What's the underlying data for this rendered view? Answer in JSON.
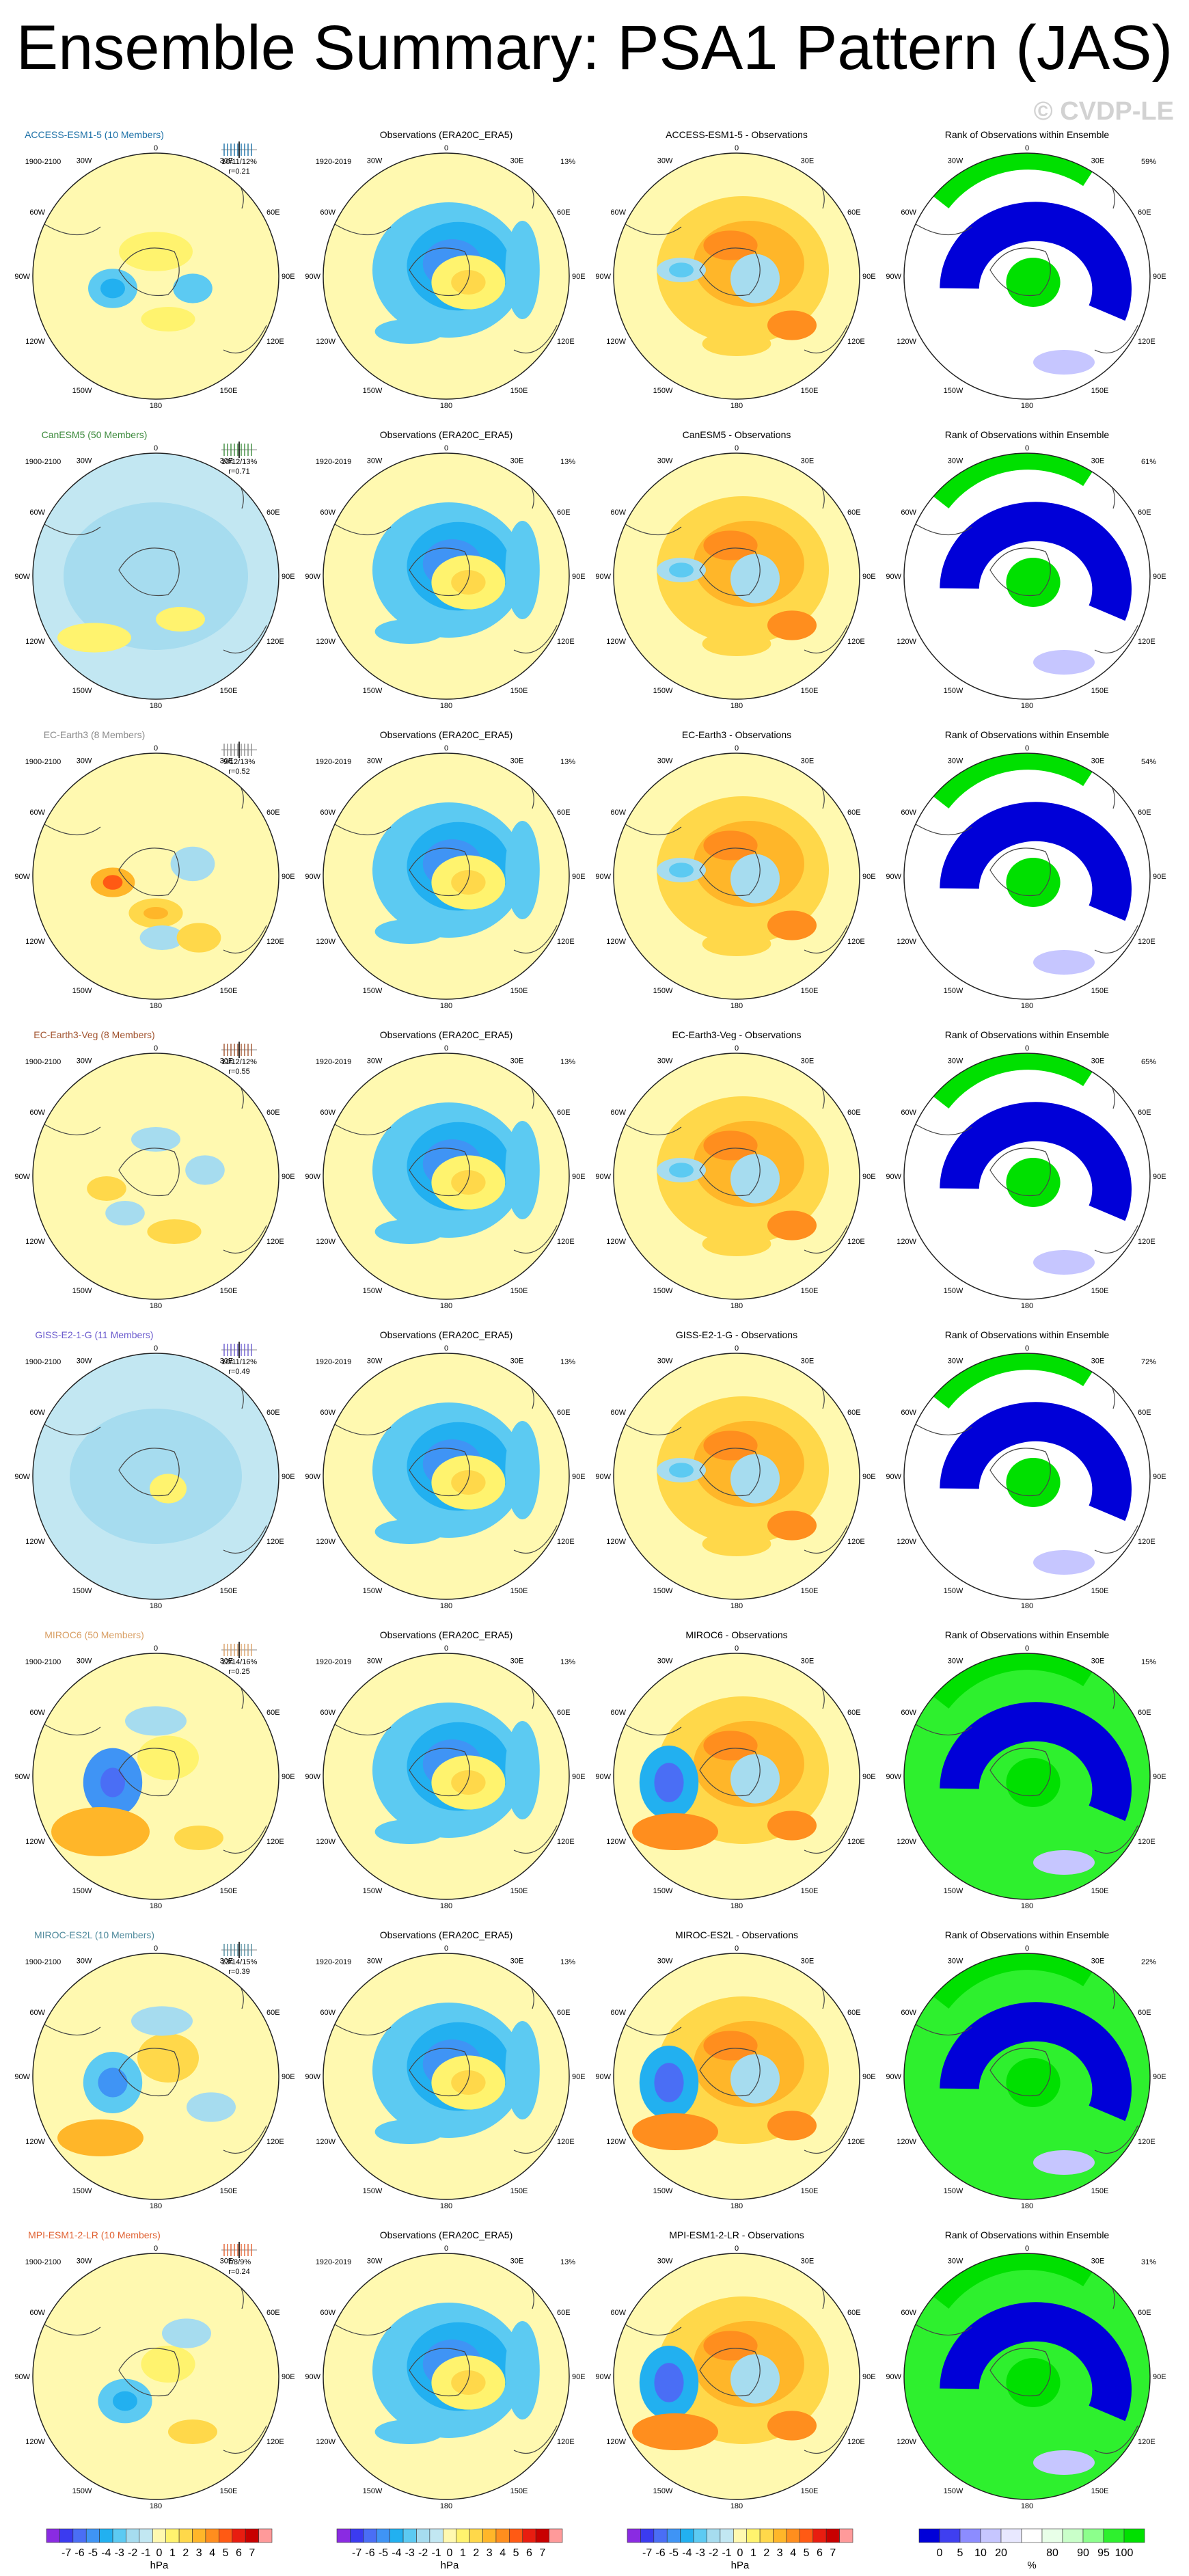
{
  "title": "Ensemble Summary: PSA1 Pattern (JAS)",
  "watermark": "© CVDP-LE",
  "colors": {
    "diverging": [
      "#8a2be2",
      "#3b3bf0",
      "#4a6ef5",
      "#3f94f5",
      "#22b0f0",
      "#5ccaf2",
      "#a6dcef",
      "#c2e7f2",
      "#fff9b0",
      "#fff36e",
      "#ffd84a",
      "#ffb629",
      "#ff8e1e",
      "#ff5a14",
      "#e81d10",
      "#c80000",
      "#ff9a9a"
    ],
    "rank": [
      "#0000d8",
      "#3f3ff0",
      "#8c8cff",
      "#c6c6ff",
      "#e8e8ff",
      "#ffffff",
      "#e8ffe8",
      "#c9ffc9",
      "#8cff8c",
      "#2ef02e",
      "#00e000"
    ],
    "model_title_colors": [
      "#1a6fa6",
      "#3c8a3c",
      "#8a8a8a",
      "#a0522d",
      "#6a5acd",
      "#d9a066",
      "#4f8a9c",
      "#e06030"
    ]
  },
  "column_titles": {
    "obs": "Observations (ERA20C_ERA5)",
    "rank": "Rank of Observations within Ensemble"
  },
  "obs_period": "1920-2019",
  "obs_percent": "13%",
  "model_period": "1900-2100",
  "lon_labels": {
    "top": "0",
    "bottom": "180",
    "left": "90W",
    "right": "90E",
    "tl1": "30W",
    "tl2": "60W",
    "tr1": "30E",
    "tr2": "60E",
    "bl1": "120W",
    "bl2": "150W",
    "br1": "120E",
    "br2": "150E"
  },
  "rows": [
    {
      "model_title": "ACCESS-ESM1-5 (10 Members)",
      "diff_title": "ACCESS-ESM1-5 - Observations",
      "stats": "10/11/12%",
      "r": "r=0.21",
      "rank_pct": "59%"
    },
    {
      "model_title": "CanESM5 (50 Members)",
      "diff_title": "CanESM5 - Observations",
      "stats": "10/12/13%",
      "r": "r=0.71",
      "rank_pct": "61%"
    },
    {
      "model_title": "EC-Earth3 (8 Members)",
      "diff_title": "EC-Earth3 - Observations",
      "stats": "9/12/13%",
      "r": "r=0.52",
      "rank_pct": "54%"
    },
    {
      "model_title": "EC-Earth3-Veg (8 Members)",
      "diff_title": "EC-Earth3-Veg - Observations",
      "stats": "11/12/12%",
      "r": "r=0.55",
      "rank_pct": "65%"
    },
    {
      "model_title": "GISS-E2-1-G (11 Members)",
      "diff_title": "GISS-E2-1-G - Observations",
      "stats": "10/11/12%",
      "r": "r=0.49",
      "rank_pct": "72%"
    },
    {
      "model_title": "MIROC6 (50 Members)",
      "diff_title": "MIROC6 - Observations",
      "stats": "12/14/16%",
      "r": "r=0.25",
      "rank_pct": "15%"
    },
    {
      "model_title": "MIROC-ES2L (10 Members)",
      "diff_title": "MIROC-ES2L - Observations",
      "stats": "13/14/15%",
      "r": "r=0.39",
      "rank_pct": "22%"
    },
    {
      "model_title": "MPI-ESM1-2-LR (10 Members)",
      "diff_title": "MPI-ESM1-2-LR - Observations",
      "stats": "7/8/9%",
      "r": "r=0.24",
      "rank_pct": "31%"
    }
  ],
  "colorbar": {
    "hpa_ticks": [
      "-7",
      "-6",
      "-5",
      "-4",
      "-3",
      "-2",
      "-1",
      "0",
      "1",
      "2",
      "3",
      "4",
      "5",
      "6",
      "7"
    ],
    "hpa_unit": "hPa",
    "rank_ticks": [
      "0",
      "5",
      "10",
      "20",
      "80",
      "90",
      "95",
      "100"
    ],
    "rank_unit": "%"
  },
  "chart_data": {
    "type": "heatmap",
    "title": "Ensemble Summary: PSA1 Pattern (JAS)",
    "projection": "south-polar-stereographic",
    "variable_units": "hPa",
    "contour_levels": [
      -7,
      -6,
      -5,
      -4,
      -3,
      -2,
      -1,
      0,
      1,
      2,
      3,
      4,
      5,
      6,
      7
    ],
    "rank_levels": [
      0,
      5,
      10,
      20,
      80,
      90,
      95,
      100
    ],
    "panels_per_row": [
      "ensemble mean pattern",
      "observations",
      "ensemble - observations",
      "rank of observations within ensemble"
    ],
    "models": [
      "ACCESS-ESM1-5",
      "CanESM5",
      "EC-Earth3",
      "EC-Earth3-Veg",
      "GISS-E2-1-G",
      "MIROC6",
      "MIROC-ES2L",
      "MPI-ESM1-2-LR"
    ],
    "members": [
      10,
      50,
      8,
      8,
      11,
      50,
      10,
      10
    ],
    "explained_variance_low_mean_high_pct": [
      [
        10,
        11,
        12
      ],
      [
        10,
        12,
        13
      ],
      [
        9,
        12,
        13
      ],
      [
        11,
        12,
        12
      ],
      [
        10,
        11,
        12
      ],
      [
        12,
        14,
        16
      ],
      [
        13,
        14,
        15
      ],
      [
        7,
        8,
        9
      ]
    ],
    "pattern_correlation": [
      0.21,
      0.71,
      0.52,
      0.55,
      0.49,
      0.25,
      0.39,
      0.24
    ],
    "obs_explained_variance_pct": 13,
    "rank_percent": [
      59,
      61,
      54,
      65,
      72,
      15,
      22,
      31
    ]
  }
}
